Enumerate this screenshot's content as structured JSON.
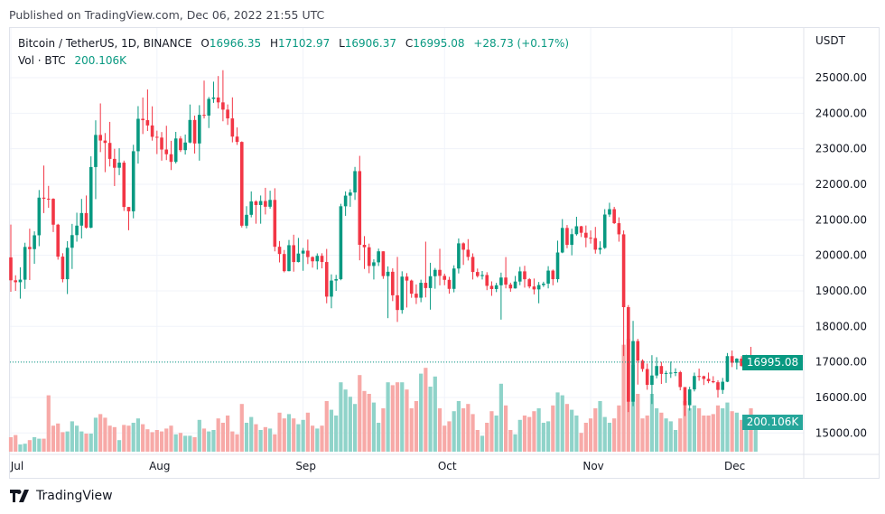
{
  "published": "Published on TradingView.com, Dec 06, 2022 21:55 UTC",
  "legend": {
    "symbol": "Bitcoin / TetherUS, 1D, BINANCE",
    "o_label": "O",
    "o": "16966.35",
    "h_label": "H",
    "h": "17102.97",
    "l_label": "L",
    "l": "16906.37",
    "c_label": "C",
    "c": "16995.08",
    "change": "+28.73 (+0.17%)",
    "vol_label": "Vol · BTC",
    "vol": "200.106K"
  },
  "price_tag": "16995.08",
  "volume_tag": "200.106K",
  "brand": "TradingView",
  "colors": {
    "up": "#089981",
    "down": "#f23645",
    "up_volume": "#8fd3c9",
    "down_volume": "#f7a9a7"
  },
  "chart_data": {
    "type": "candlestick",
    "title": "",
    "currency_label": "USDT",
    "ylim": [
      14700,
      25600
    ],
    "y_ticks": [
      "15000.00",
      "16000.00",
      "17000.00",
      "18000.00",
      "19000.00",
      "20000.00",
      "21000.00",
      "22000.00",
      "23000.00",
      "24000.00",
      "25000.00"
    ],
    "x_ticks": [
      {
        "label": "Jul",
        "date": "2022-07-01"
      },
      {
        "label": "Aug",
        "date": "2022-08-01"
      },
      {
        "label": "Sep",
        "date": "2022-09-01"
      },
      {
        "label": "Oct",
        "date": "2022-10-01"
      },
      {
        "label": "Nov",
        "date": "2022-11-01"
      },
      {
        "label": "Dec",
        "date": "2022-12-01"
      }
    ],
    "grid": true,
    "last_price_line": 16995.08,
    "columns": [
      "date",
      "open",
      "high",
      "low",
      "close",
      "volume_k"
    ],
    "candles": [
      [
        "2022-07-01",
        19942,
        20865,
        18975,
        19297,
        100
      ],
      [
        "2022-07-02",
        19297,
        19438,
        19000,
        19243,
        115
      ],
      [
        "2022-07-03",
        19243,
        19664,
        18781,
        19315,
        50
      ],
      [
        "2022-07-04",
        19315,
        20354,
        19055,
        20236,
        55
      ],
      [
        "2022-07-05",
        20236,
        20750,
        19304,
        20175,
        80
      ],
      [
        "2022-07-06",
        20175,
        20675,
        19761,
        20564,
        100
      ],
      [
        "2022-07-07",
        20564,
        21838,
        20257,
        21624,
        90
      ],
      [
        "2022-07-08",
        21624,
        22527,
        21189,
        21594,
        90
      ],
      [
        "2022-07-09",
        21594,
        21955,
        21338,
        21591,
        390
      ],
      [
        "2022-07-10",
        21591,
        21607,
        20655,
        20862,
        180
      ],
      [
        "2022-07-11",
        20862,
        20887,
        19878,
        19963,
        195
      ],
      [
        "2022-07-12",
        19963,
        20059,
        19240,
        19328,
        135
      ],
      [
        "2022-07-13",
        19328,
        20400,
        18910,
        20213,
        140
      ],
      [
        "2022-07-14",
        20213,
        20885,
        19616,
        20569,
        210
      ],
      [
        "2022-07-15",
        20569,
        21200,
        20385,
        20836,
        180
      ],
      [
        "2022-07-16",
        20836,
        21588,
        20475,
        21190,
        140
      ],
      [
        "2022-07-17",
        21190,
        21684,
        20755,
        20779,
        125
      ],
      [
        "2022-07-18",
        20779,
        22786,
        20761,
        22485,
        125
      ],
      [
        "2022-07-19",
        22485,
        23800,
        21582,
        23389,
        235
      ],
      [
        "2022-07-20",
        23389,
        24276,
        22906,
        23231,
        260
      ],
      [
        "2022-07-21",
        23231,
        23442,
        22341,
        23164,
        235
      ],
      [
        "2022-07-22",
        23164,
        23756,
        22500,
        22714,
        180
      ],
      [
        "2022-07-23",
        22714,
        22999,
        21950,
        22465,
        170
      ],
      [
        "2022-07-24",
        22465,
        23014,
        22257,
        22609,
        80
      ],
      [
        "2022-07-25",
        22609,
        22666,
        21250,
        21361,
        185
      ],
      [
        "2022-07-26",
        21361,
        21361,
        20706,
        21239,
        180
      ],
      [
        "2022-07-27",
        21239,
        23112,
        21042,
        22930,
        200
      ],
      [
        "2022-07-28",
        22930,
        24199,
        22582,
        23843,
        230
      ],
      [
        "2022-07-29",
        23843,
        24442,
        23414,
        23804,
        190
      ],
      [
        "2022-07-30",
        23804,
        24668,
        23500,
        23656,
        155
      ],
      [
        "2022-07-31",
        23656,
        24194,
        23228,
        23336,
        135
      ],
      [
        "2022-08-01",
        23336,
        23509,
        22850,
        23314,
        150
      ],
      [
        "2022-08-02",
        23314,
        23470,
        22664,
        22978,
        140
      ],
      [
        "2022-08-03",
        22978,
        23647,
        22681,
        22846,
        160
      ],
      [
        "2022-08-04",
        22846,
        23223,
        22400,
        22630,
        180
      ],
      [
        "2022-08-05",
        22630,
        23475,
        22586,
        23289,
        120
      ],
      [
        "2022-08-06",
        23289,
        23354,
        22909,
        22961,
        130
      ],
      [
        "2022-08-07",
        22961,
        23400,
        22837,
        23175,
        110
      ],
      [
        "2022-08-08",
        23175,
        24245,
        23154,
        23810,
        110
      ],
      [
        "2022-08-09",
        23810,
        23933,
        22865,
        23149,
        100
      ],
      [
        "2022-08-10",
        23149,
        24226,
        22665,
        23954,
        220
      ],
      [
        "2022-08-11",
        23954,
        24918,
        23852,
        23934,
        160
      ],
      [
        "2022-08-12",
        23934,
        24456,
        23583,
        24403,
        140
      ],
      [
        "2022-08-13",
        24403,
        24888,
        24291,
        24442,
        150
      ],
      [
        "2022-08-14",
        24442,
        25047,
        24133,
        24305,
        230
      ],
      [
        "2022-08-15",
        24305,
        25211,
        23773,
        24101,
        200
      ],
      [
        "2022-08-16",
        24101,
        24247,
        23671,
        23854,
        250
      ],
      [
        "2022-08-17",
        23854,
        24446,
        23180,
        23342,
        140
      ],
      [
        "2022-08-18",
        23342,
        23600,
        23108,
        23191,
        120
      ],
      [
        "2022-08-19",
        23191,
        23208,
        20783,
        20834,
        330
      ],
      [
        "2022-08-20",
        20834,
        21382,
        20761,
        21140,
        200
      ],
      [
        "2022-08-21",
        21140,
        21800,
        21069,
        21517,
        240
      ],
      [
        "2022-08-22",
        21517,
        21548,
        20890,
        21416,
        190
      ],
      [
        "2022-08-23",
        21416,
        21684,
        20890,
        21529,
        150
      ],
      [
        "2022-08-24",
        21529,
        21900,
        21150,
        21368,
        170
      ],
      [
        "2022-08-25",
        21368,
        21819,
        21313,
        21560,
        160
      ],
      [
        "2022-08-26",
        21560,
        21888,
        20112,
        20241,
        120
      ],
      [
        "2022-08-27",
        20241,
        20402,
        19800,
        20037,
        270
      ],
      [
        "2022-08-28",
        20037,
        20150,
        19520,
        19555,
        230
      ],
      [
        "2022-08-29",
        19555,
        20433,
        19550,
        20285,
        260
      ],
      [
        "2022-08-30",
        20285,
        20580,
        19540,
        19811,
        230
      ],
      [
        "2022-08-31",
        19811,
        20490,
        19800,
        20050,
        190
      ],
      [
        "2022-09-01",
        20050,
        20208,
        19565,
        20131,
        220
      ],
      [
        "2022-09-02",
        20131,
        20444,
        19755,
        19952,
        270
      ],
      [
        "2022-09-03",
        19952,
        19970,
        19653,
        19832,
        180
      ],
      [
        "2022-09-04",
        19832,
        20055,
        19600,
        19986,
        160
      ],
      [
        "2022-09-05",
        19986,
        20058,
        19633,
        19812,
        180
      ],
      [
        "2022-09-06",
        19812,
        20180,
        18650,
        18837,
        350
      ],
      [
        "2022-09-07",
        18837,
        19464,
        18510,
        19290,
        290
      ],
      [
        "2022-09-08",
        19290,
        19450,
        19000,
        19329,
        250
      ],
      [
        "2022-09-09",
        19329,
        21450,
        19298,
        21381,
        480
      ],
      [
        "2022-09-10",
        21381,
        21800,
        21111,
        21680,
        430
      ],
      [
        "2022-09-11",
        21680,
        21860,
        21366,
        21769,
        380
      ],
      [
        "2022-09-12",
        21769,
        22489,
        21560,
        22370,
        330
      ],
      [
        "2022-09-13",
        22370,
        22800,
        19860,
        20296,
        530
      ],
      [
        "2022-09-14",
        20296,
        20540,
        19617,
        20227,
        420
      ],
      [
        "2022-09-15",
        20227,
        20330,
        19497,
        19701,
        400
      ],
      [
        "2022-09-16",
        19701,
        19888,
        19320,
        19803,
        340
      ],
      [
        "2022-09-17",
        19803,
        20189,
        19700,
        20113,
        200
      ],
      [
        "2022-09-18",
        20113,
        20115,
        19338,
        19416,
        300
      ],
      [
        "2022-09-19",
        19416,
        19689,
        18232,
        19537,
        480
      ],
      [
        "2022-09-20",
        19537,
        19634,
        18711,
        18875,
        460
      ],
      [
        "2022-09-21",
        18875,
        19956,
        18125,
        18461,
        480
      ],
      [
        "2022-09-22",
        18461,
        19550,
        18356,
        19401,
        480
      ],
      [
        "2022-09-23",
        19401,
        19500,
        18531,
        19289,
        430
      ],
      [
        "2022-09-24",
        19289,
        19316,
        18805,
        18920,
        300
      ],
      [
        "2022-09-25",
        18920,
        19180,
        18629,
        18807,
        350
      ],
      [
        "2022-09-26",
        18807,
        19315,
        18680,
        19227,
        540
      ],
      [
        "2022-09-27",
        19227,
        20385,
        18816,
        19079,
        580
      ],
      [
        "2022-09-28",
        19079,
        19790,
        18471,
        19412,
        450
      ],
      [
        "2022-09-29",
        19412,
        19645,
        19060,
        19591,
        520
      ],
      [
        "2022-09-30",
        19591,
        20185,
        19155,
        19422,
        300
      ],
      [
        "2022-10-01",
        19422,
        19484,
        19159,
        19310,
        180
      ],
      [
        "2022-10-02",
        19310,
        19395,
        18920,
        19056,
        210
      ],
      [
        "2022-10-03",
        19056,
        19719,
        18959,
        19629,
        280
      ],
      [
        "2022-10-04",
        19629,
        20475,
        19490,
        20337,
        350
      ],
      [
        "2022-10-05",
        20337,
        20365,
        19730,
        20158,
        300
      ],
      [
        "2022-10-06",
        20158,
        20456,
        19854,
        19955,
        330
      ],
      [
        "2022-10-07",
        19955,
        20055,
        19320,
        19531,
        260
      ],
      [
        "2022-10-08",
        19531,
        19628,
        19375,
        19417,
        150
      ],
      [
        "2022-10-09",
        19417,
        19558,
        19320,
        19446,
        110
      ],
      [
        "2022-10-10",
        19446,
        19525,
        19020,
        19141,
        200
      ],
      [
        "2022-10-11",
        19141,
        19267,
        18860,
        19051,
        280
      ],
      [
        "2022-10-12",
        19051,
        19225,
        18965,
        19157,
        250
      ],
      [
        "2022-10-13",
        19157,
        19513,
        18190,
        19375,
        470
      ],
      [
        "2022-10-14",
        19375,
        19951,
        19070,
        19176,
        320
      ],
      [
        "2022-10-15",
        19176,
        19230,
        18975,
        19069,
        150
      ],
      [
        "2022-10-16",
        19069,
        19420,
        19063,
        19262,
        120
      ],
      [
        "2022-10-17",
        19262,
        19676,
        19160,
        19549,
        220
      ],
      [
        "2022-10-18",
        19549,
        19706,
        19091,
        19327,
        250
      ],
      [
        "2022-10-19",
        19327,
        19360,
        19070,
        19123,
        240
      ],
      [
        "2022-10-20",
        19123,
        19347,
        18900,
        19041,
        280
      ],
      [
        "2022-10-21",
        19041,
        19250,
        18650,
        19164,
        300
      ],
      [
        "2022-10-22",
        19164,
        19257,
        19111,
        19204,
        200
      ],
      [
        "2022-10-23",
        19204,
        19695,
        19070,
        19570,
        210
      ],
      [
        "2022-10-24",
        19570,
        19601,
        19157,
        19329,
        320
      ],
      [
        "2022-10-25",
        19329,
        20413,
        19240,
        20080,
        410
      ],
      [
        "2022-10-26",
        20080,
        21020,
        20060,
        20771,
        390
      ],
      [
        "2022-10-27",
        20771,
        20854,
        20200,
        20295,
        330
      ],
      [
        "2022-10-28",
        20295,
        20750,
        20000,
        20595,
        290
      ],
      [
        "2022-10-29",
        20595,
        21085,
        20555,
        20818,
        250
      ],
      [
        "2022-10-30",
        20818,
        20830,
        20515,
        20635,
        130
      ],
      [
        "2022-10-31",
        20635,
        20840,
        20226,
        20495,
        200
      ],
      [
        "2022-11-01",
        20495,
        20700,
        20330,
        20485,
        230
      ],
      [
        "2022-11-02",
        20485,
        20800,
        20048,
        20159,
        300
      ],
      [
        "2022-11-03",
        20159,
        20394,
        20031,
        20209,
        350
      ],
      [
        "2022-11-04",
        20209,
        21300,
        20180,
        21148,
        240
      ],
      [
        "2022-11-05",
        21148,
        21480,
        21080,
        21300,
        200
      ],
      [
        "2022-11-06",
        21300,
        21365,
        20880,
        20905,
        230
      ],
      [
        "2022-11-07",
        20905,
        21069,
        20384,
        20591,
        320
      ],
      [
        "2022-11-08",
        20591,
        20700,
        17166,
        18541,
        740
      ],
      [
        "2022-11-09",
        18541,
        18600,
        15588,
        15880,
        780
      ],
      [
        "2022-11-10",
        15880,
        18155,
        15754,
        17587,
        600
      ],
      [
        "2022-11-11",
        17587,
        17650,
        16361,
        17034,
        400
      ],
      [
        "2022-11-12",
        17034,
        17072,
        16723,
        16800,
        230
      ],
      [
        "2022-11-13",
        16800,
        16955,
        16216,
        16354,
        250
      ],
      [
        "2022-11-14",
        16354,
        17190,
        15815,
        16618,
        400
      ],
      [
        "2022-11-15",
        16618,
        17134,
        16538,
        16884,
        300
      ],
      [
        "2022-11-16",
        16884,
        17000,
        16380,
        16663,
        270
      ],
      [
        "2022-11-17",
        16663,
        16750,
        16410,
        16688,
        230
      ],
      [
        "2022-11-18",
        16688,
        17010,
        16550,
        16698,
        210
      ],
      [
        "2022-11-19",
        16698,
        16820,
        16600,
        16711,
        150
      ],
      [
        "2022-11-20",
        16711,
        16750,
        16200,
        16292,
        230
      ],
      [
        "2022-11-21",
        16292,
        16290,
        15476,
        15781,
        350
      ],
      [
        "2022-11-22",
        15781,
        16300,
        15630,
        16227,
        300
      ],
      [
        "2022-11-23",
        16227,
        16700,
        16170,
        16603,
        320
      ],
      [
        "2022-11-24",
        16603,
        16812,
        16470,
        16598,
        300
      ],
      [
        "2022-11-25",
        16598,
        16613,
        16350,
        16522,
        250
      ],
      [
        "2022-11-26",
        16522,
        16700,
        16400,
        16459,
        250
      ],
      [
        "2022-11-27",
        16459,
        16598,
        16400,
        16428,
        260
      ],
      [
        "2022-11-28",
        16428,
        16483,
        15995,
        16212,
        320
      ],
      [
        "2022-11-29",
        16212,
        16550,
        16100,
        16442,
        300
      ],
      [
        "2022-11-30",
        16442,
        17250,
        16430,
        17163,
        340
      ],
      [
        "2022-12-01",
        17163,
        17320,
        16855,
        16977,
        280
      ],
      [
        "2022-12-02",
        16977,
        17105,
        16787,
        17092,
        270
      ],
      [
        "2022-12-03",
        17092,
        17160,
        16870,
        16885,
        220
      ],
      [
        "2022-12-04",
        16885,
        17202,
        16878,
        17105,
        250
      ],
      [
        "2022-12-05",
        17105,
        17424,
        16867,
        16967,
        300
      ],
      [
        "2022-12-06",
        16966.35,
        17102.97,
        16906.37,
        16995.08,
        200.106
      ]
    ]
  }
}
